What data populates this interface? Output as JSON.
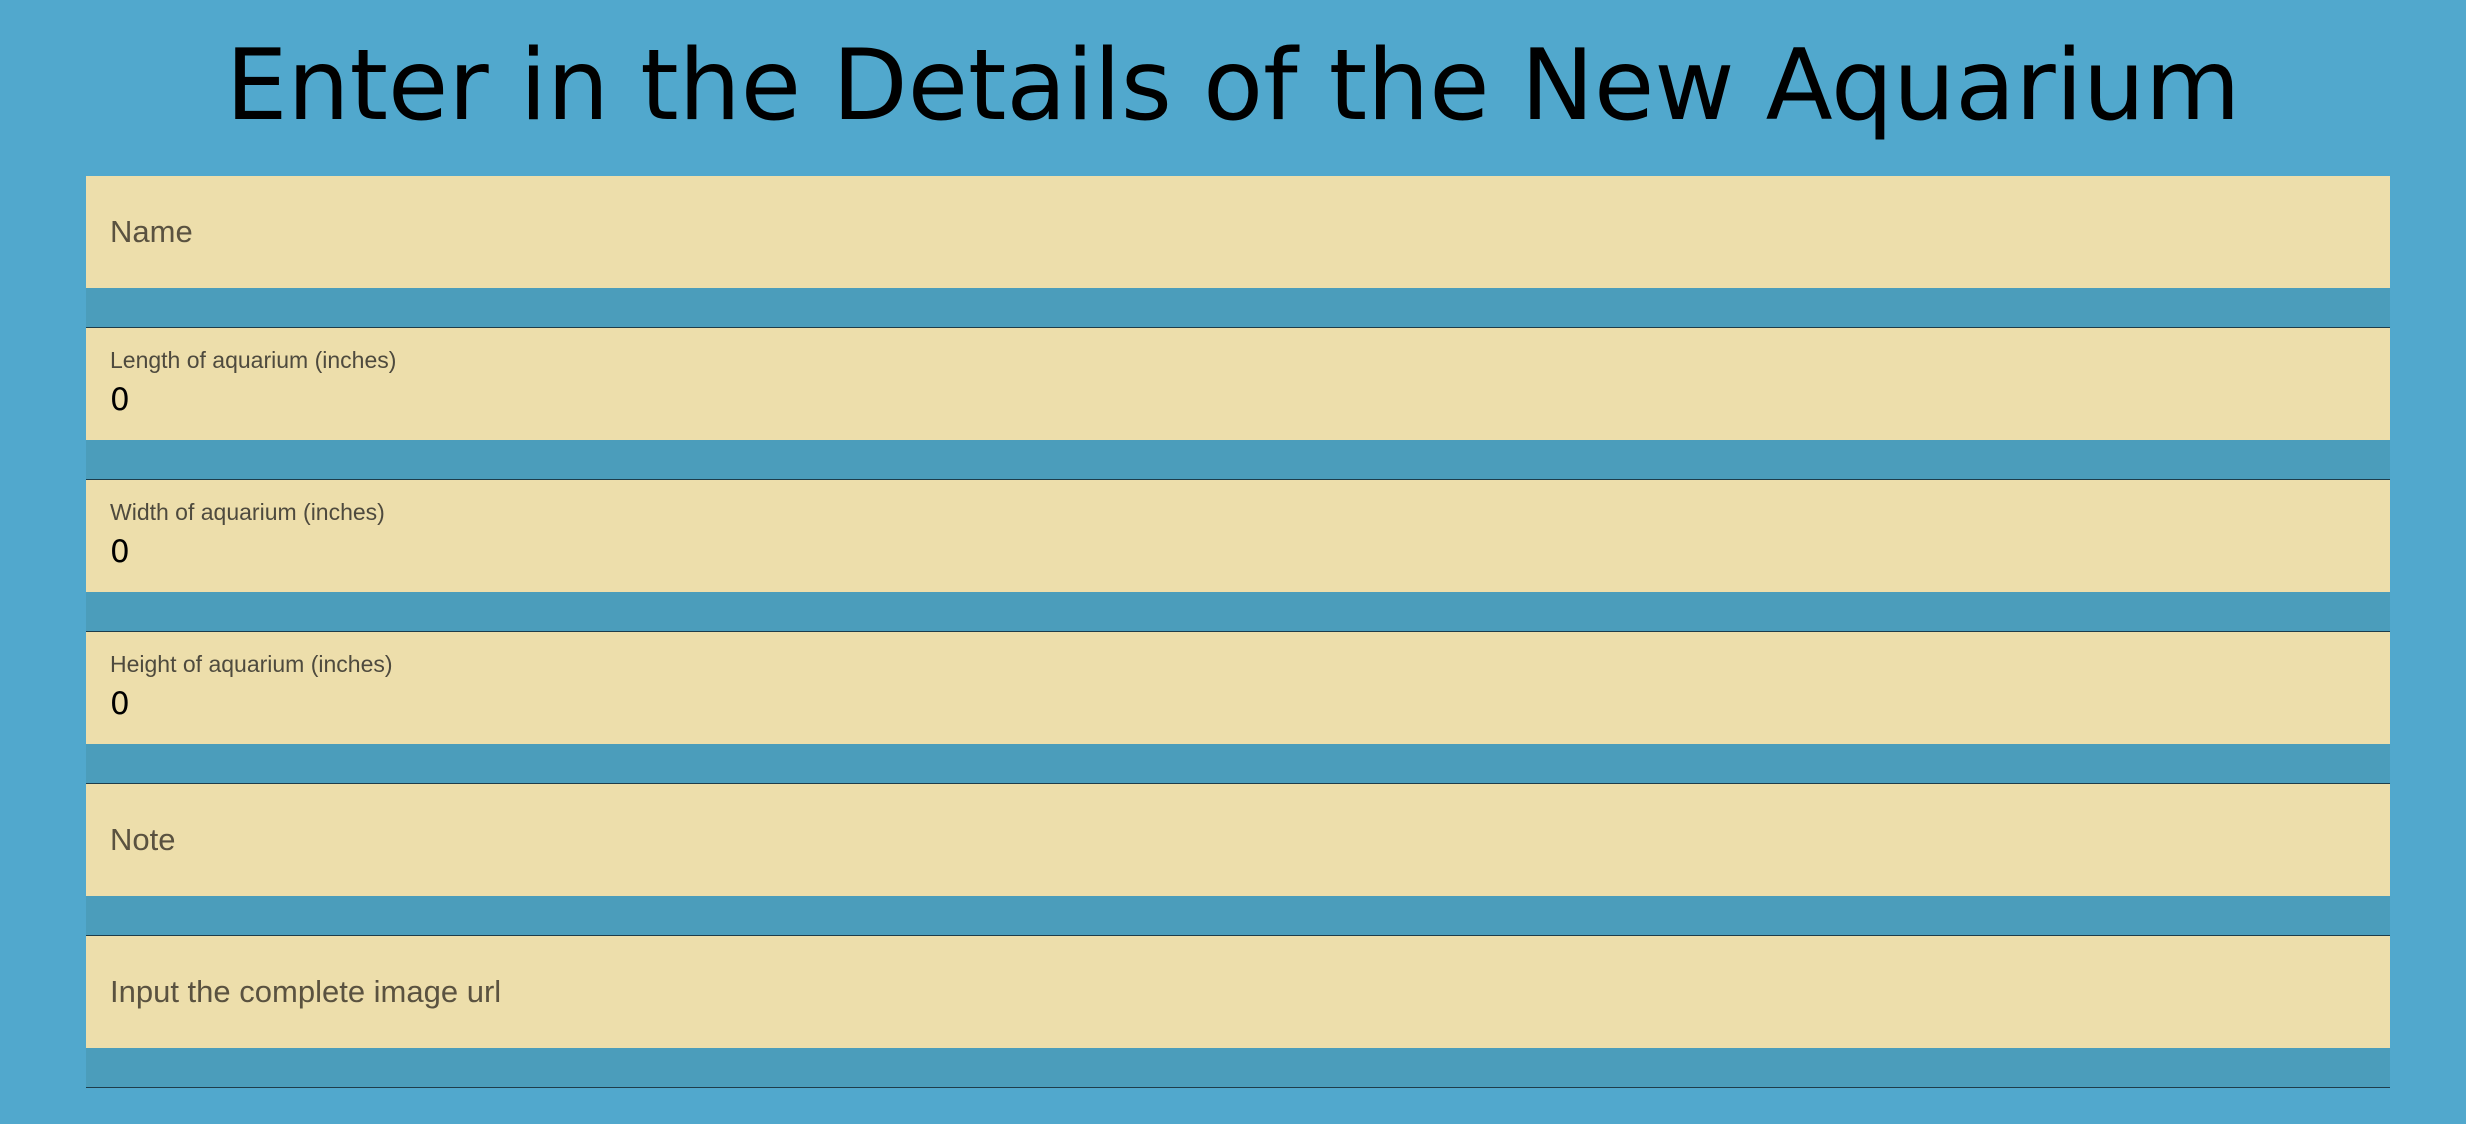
{
  "page": {
    "title": "Enter in the Details of the New Aquarium"
  },
  "form": {
    "name": {
      "placeholder": "Name",
      "value": ""
    },
    "length": {
      "label": "Length of aquarium (inches)",
      "value": "0"
    },
    "width": {
      "label": "Width of aquarium (inches)",
      "value": "0"
    },
    "height": {
      "label": "Height of aquarium (inches)",
      "value": "0"
    },
    "note": {
      "placeholder": "Note",
      "value": ""
    },
    "image_url": {
      "placeholder": "Input the complete image url",
      "value": ""
    }
  },
  "colors": {
    "background": "#51a8cd",
    "field_fill": "#eddeab",
    "field_gap": "#4b9dbb"
  }
}
